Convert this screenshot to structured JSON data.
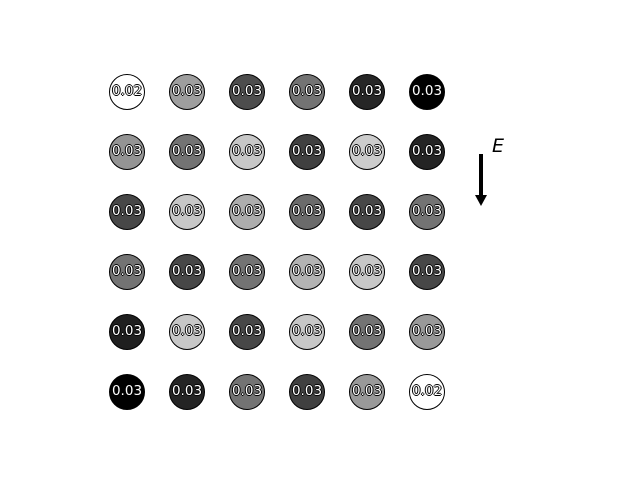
{
  "grid": {
    "rows": [
      [
        {
          "label": "0.02",
          "shade": 1.0
        },
        {
          "label": "0.03",
          "shade": 0.62
        },
        {
          "label": "0.03",
          "shade": 0.3
        },
        {
          "label": "0.03",
          "shade": 0.45
        },
        {
          "label": "0.03",
          "shade": 0.15
        },
        {
          "label": "0.03",
          "shade": 0.0
        }
      ],
      [
        {
          "label": "0.03",
          "shade": 0.58
        },
        {
          "label": "0.03",
          "shade": 0.45
        },
        {
          "label": "0.03",
          "shade": 0.78
        },
        {
          "label": "0.03",
          "shade": 0.25
        },
        {
          "label": "0.03",
          "shade": 0.8
        },
        {
          "label": "0.03",
          "shade": 0.14
        }
      ],
      [
        {
          "label": "0.03",
          "shade": 0.28
        },
        {
          "label": "0.03",
          "shade": 0.78
        },
        {
          "label": "0.03",
          "shade": 0.68
        },
        {
          "label": "0.03",
          "shade": 0.42
        },
        {
          "label": "0.03",
          "shade": 0.28
        },
        {
          "label": "0.03",
          "shade": 0.45
        }
      ],
      [
        {
          "label": "0.03",
          "shade": 0.45
        },
        {
          "label": "0.03",
          "shade": 0.28
        },
        {
          "label": "0.03",
          "shade": 0.45
        },
        {
          "label": "0.03",
          "shade": 0.7
        },
        {
          "label": "0.03",
          "shade": 0.78
        },
        {
          "label": "0.03",
          "shade": 0.28
        }
      ],
      [
        {
          "label": "0.03",
          "shade": 0.12
        },
        {
          "label": "0.03",
          "shade": 0.78
        },
        {
          "label": "0.03",
          "shade": 0.28
        },
        {
          "label": "0.03",
          "shade": 0.78
        },
        {
          "label": "0.03",
          "shade": 0.45
        },
        {
          "label": "0.03",
          "shade": 0.6
        }
      ],
      [
        {
          "label": "0.03",
          "shade": 0.0
        },
        {
          "label": "0.03",
          "shade": 0.14
        },
        {
          "label": "0.03",
          "shade": 0.45
        },
        {
          "label": "0.03",
          "shade": 0.25
        },
        {
          "label": "0.03",
          "shade": 0.6
        },
        {
          "label": "0.02",
          "shade": 1.0
        }
      ]
    ]
  },
  "field": {
    "label": "E",
    "direction": "down"
  }
}
